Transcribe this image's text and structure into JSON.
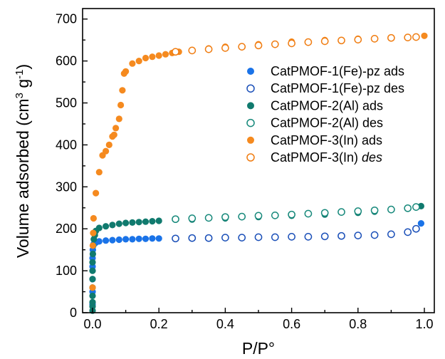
{
  "chart_data": {
    "type": "scatter",
    "xlabel": "P/P°",
    "ylabel_main": "Volume adsorbed (cm",
    "ylabel_sup1": "3",
    "ylabel_mid": " g",
    "ylabel_sup2": "-1",
    "ylabel_end": ")",
    "xlim": [
      -0.03,
      1.03
    ],
    "ylim": [
      0,
      725
    ],
    "xticks": [
      0.0,
      0.2,
      0.4,
      0.6,
      0.8,
      1.0
    ],
    "xtick_labels": [
      "0.0",
      "0.2",
      "0.4",
      "0.6",
      "0.8",
      "1.0"
    ],
    "yticks": [
      0,
      100,
      200,
      300,
      400,
      500,
      600,
      700
    ],
    "ytick_labels": [
      "0",
      "100",
      "200",
      "300",
      "400",
      "500",
      "600",
      "700"
    ],
    "legend_position": "right",
    "series": [
      {
        "name": "CatPMOF-1(Fe)-pz ads",
        "color": "#1a73e8",
        "filled": true,
        "x": [
          0.0,
          0.0,
          0.0,
          0.0,
          0.0,
          0.001,
          0.002,
          0.003,
          0.005,
          0.01,
          0.02,
          0.04,
          0.06,
          0.08,
          0.1,
          0.12,
          0.14,
          0.16,
          0.18,
          0.2,
          0.99
        ],
        "y": [
          20,
          50,
          80,
          110,
          130,
          150,
          160,
          163,
          165,
          167,
          170,
          172,
          173,
          174,
          175,
          175,
          176,
          176,
          177,
          177,
          213
        ]
      },
      {
        "name": "CatPMOF-1(Fe)-pz des",
        "color": "#1a4fb8",
        "filled": false,
        "x": [
          0.25,
          0.3,
          0.35,
          0.4,
          0.45,
          0.5,
          0.55,
          0.6,
          0.65,
          0.7,
          0.75,
          0.8,
          0.85,
          0.9,
          0.95,
          0.975
        ],
        "y": [
          177,
          178,
          178,
          179,
          179,
          180,
          180,
          181,
          181,
          182,
          183,
          184,
          185,
          187,
          192,
          200
        ]
      },
      {
        "name": "CatPMOF-2(Al) ads",
        "color": "#107a6e",
        "filled": true,
        "x": [
          0.0,
          0.0,
          0.0,
          0.0,
          0.0,
          0.0,
          0.0,
          0.0,
          0.001,
          0.002,
          0.004,
          0.007,
          0.01,
          0.02,
          0.04,
          0.06,
          0.08,
          0.1,
          0.12,
          0.14,
          0.16,
          0.18,
          0.2,
          0.3,
          0.4,
          0.5,
          0.6,
          0.7,
          0.8,
          0.85,
          0.9,
          0.95,
          0.99
        ],
        "y": [
          5,
          15,
          25,
          40,
          60,
          80,
          100,
          120,
          140,
          160,
          175,
          185,
          195,
          202,
          206,
          209,
          212,
          214,
          215,
          216,
          217,
          218,
          219,
          222,
          225,
          228,
          231,
          234,
          238,
          241,
          245,
          249,
          254
        ]
      },
      {
        "name": "CatPMOF-2(Al) des",
        "color": "#17897b",
        "filled": false,
        "x": [
          0.25,
          0.3,
          0.35,
          0.4,
          0.45,
          0.5,
          0.55,
          0.6,
          0.65,
          0.7,
          0.75,
          0.8,
          0.85,
          0.9,
          0.95,
          0.975
        ],
        "y": [
          223,
          225,
          226,
          228,
          229,
          231,
          232,
          234,
          236,
          238,
          240,
          242,
          244,
          246,
          249,
          252
        ]
      },
      {
        "name": "CatPMOF-3(In) ads",
        "color": "#f58a1f",
        "filled": true,
        "x": [
          0.0,
          0.001,
          0.002,
          0.003,
          0.01,
          0.02,
          0.03,
          0.04,
          0.05,
          0.06,
          0.065,
          0.07,
          0.08,
          0.085,
          0.09,
          0.095,
          0.1,
          0.12,
          0.14,
          0.16,
          0.18,
          0.2,
          0.22,
          0.24,
          0.26,
          0.3,
          0.35,
          0.4,
          0.5,
          0.6,
          0.7,
          0.8,
          0.9,
          1.0
        ],
        "y": [
          60,
          160,
          190,
          225,
          285,
          335,
          375,
          385,
          400,
          420,
          424,
          440,
          462,
          495,
          530,
          570,
          575,
          594,
          600,
          607,
          610,
          613,
          616,
          619,
          622,
          626,
          630,
          634,
          640,
          646,
          650,
          653,
          656,
          660
        ]
      },
      {
        "name": "CatPMOF-3(In) des",
        "name_base": "CatPMOF-3(In) ",
        "name_italic": "des",
        "color": "#f07d12",
        "filled": false,
        "x": [
          0.25,
          0.3,
          0.35,
          0.4,
          0.45,
          0.5,
          0.55,
          0.6,
          0.65,
          0.7,
          0.75,
          0.8,
          0.85,
          0.9,
          0.95,
          0.975
        ],
        "y": [
          622,
          625,
          628,
          631,
          634,
          637,
          640,
          642,
          645,
          647,
          649,
          651,
          653,
          655,
          656,
          657
        ]
      }
    ]
  }
}
